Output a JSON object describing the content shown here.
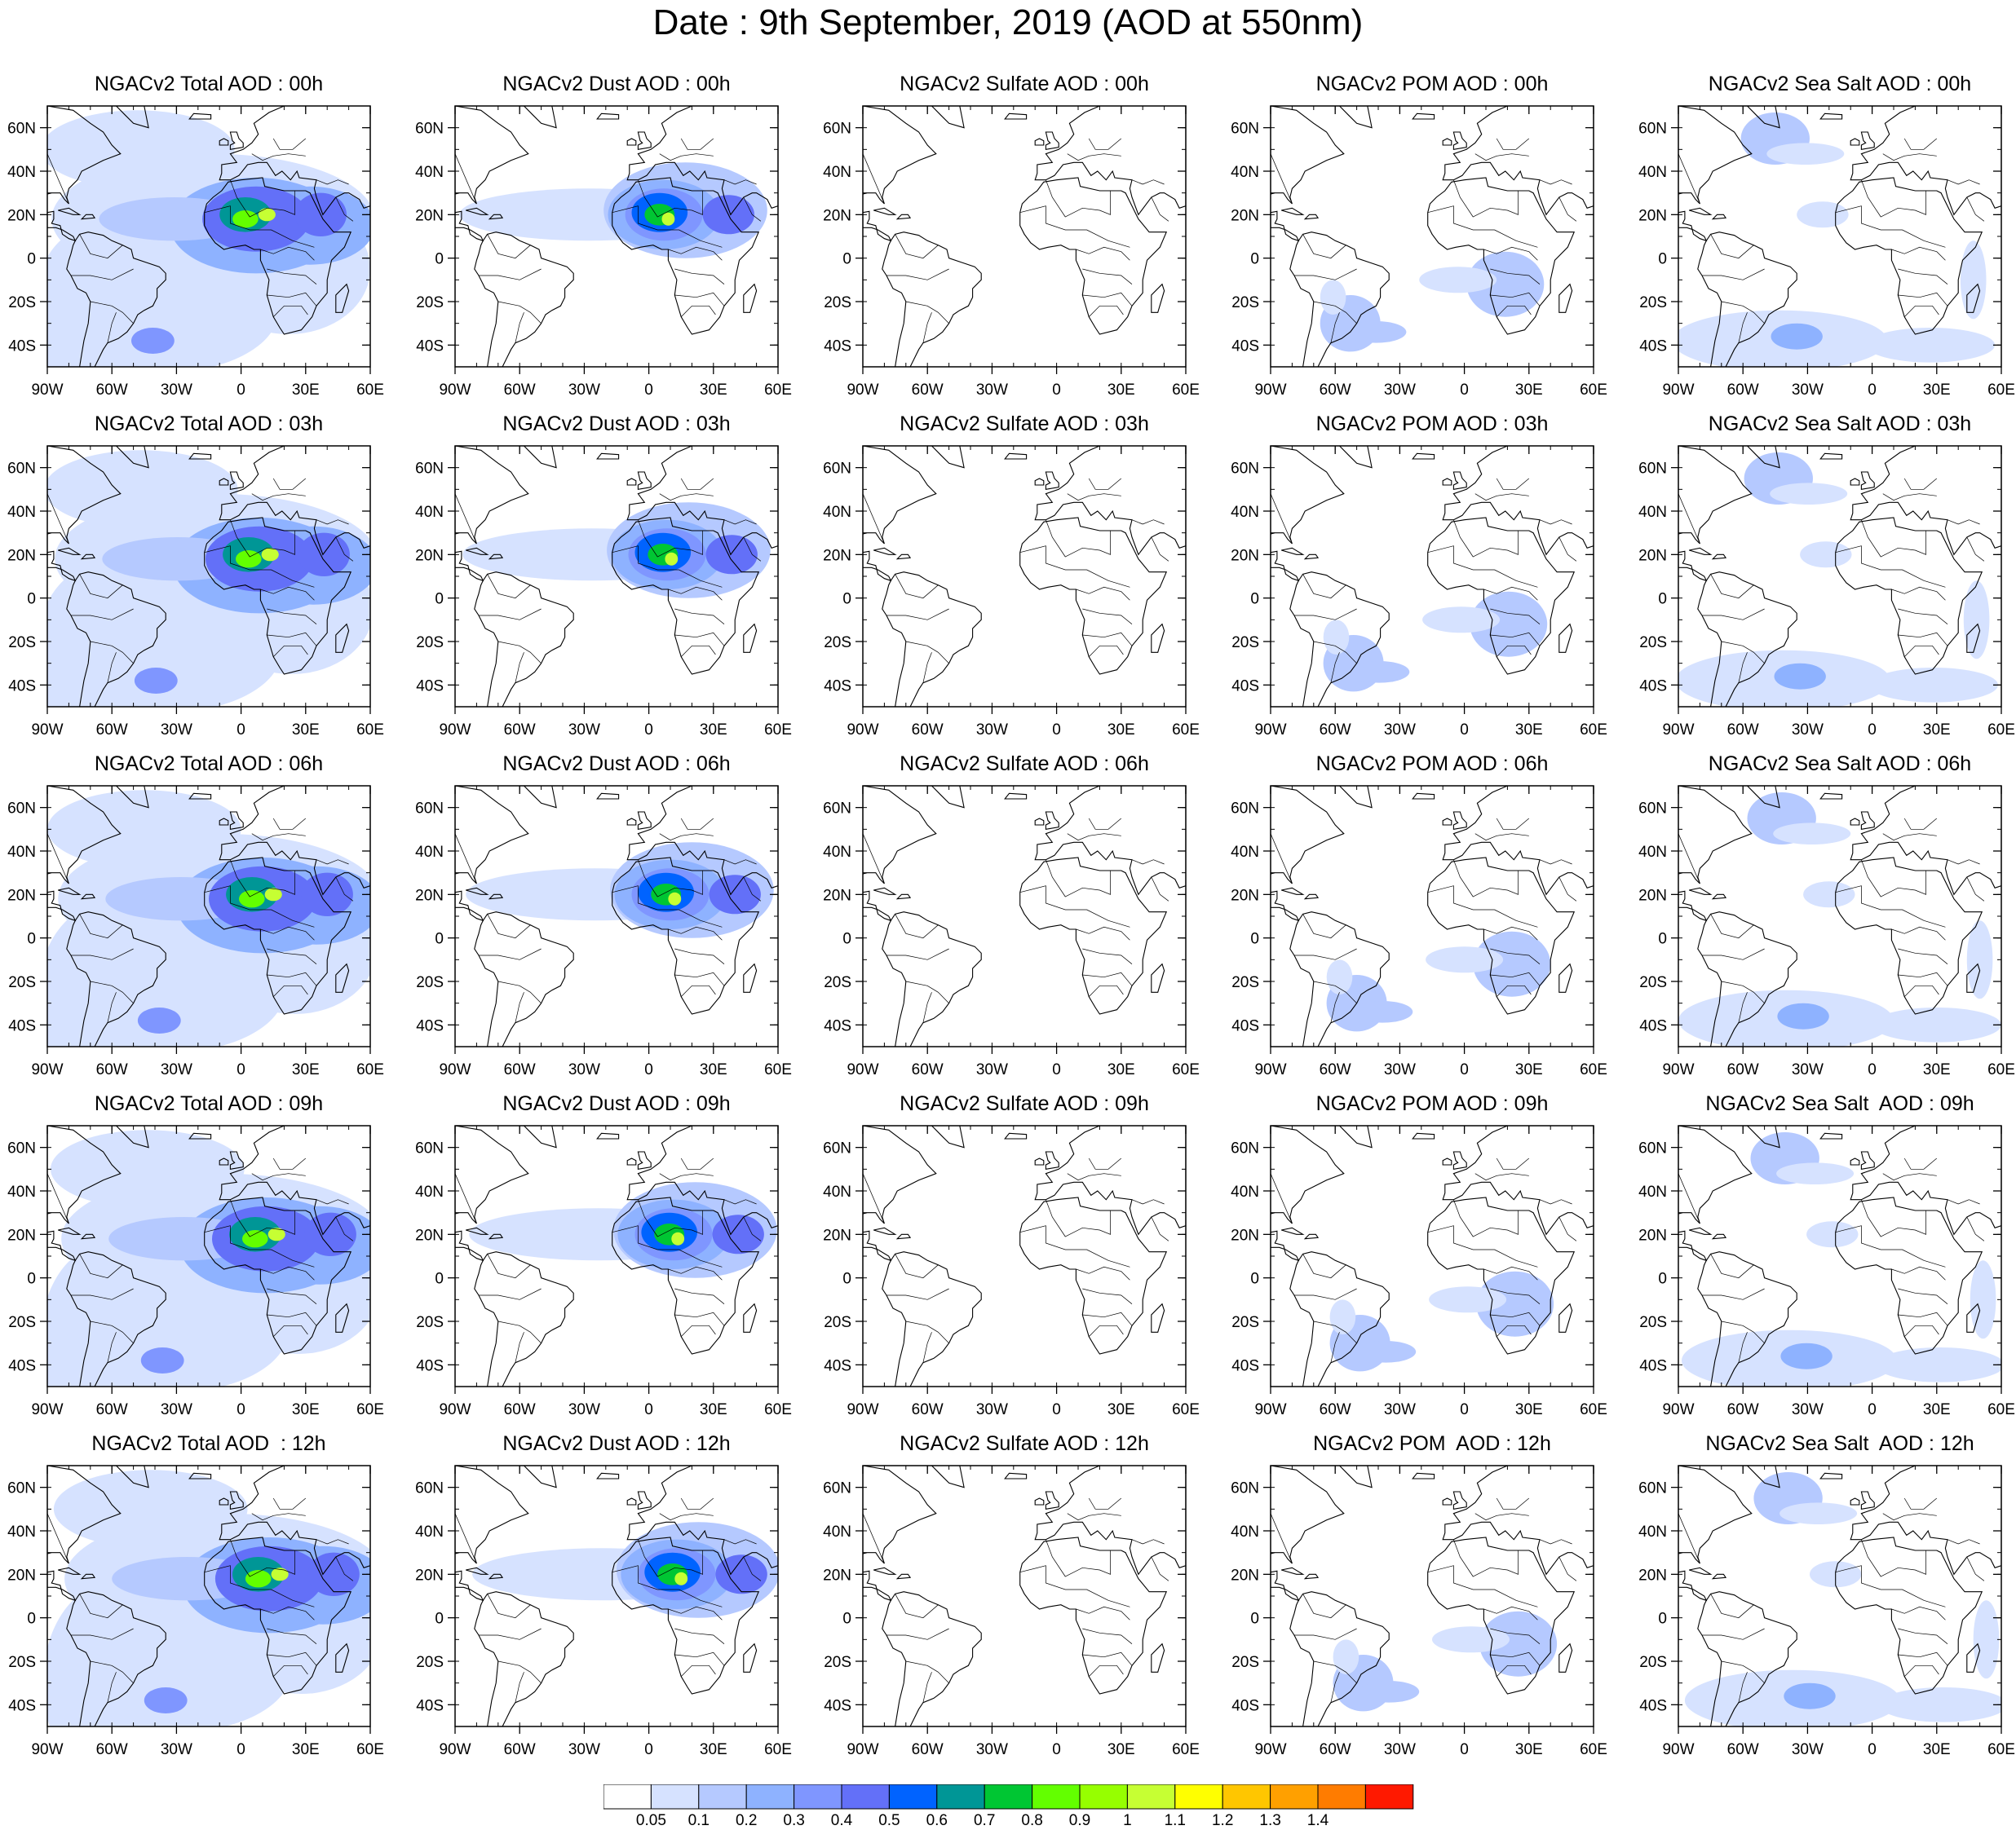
{
  "title": "Date : 9th September, 2019 (AOD at 550nm)",
  "columns": [
    "Total",
    "Dust",
    "Sulfate",
    "POM",
    "Sea Salt"
  ],
  "hours": [
    "00h",
    "03h",
    "06h",
    "09h",
    "12h"
  ],
  "panel_titles": [
    [
      "NGACv2 Total AOD : 00h",
      "NGACv2 Dust AOD : 00h",
      "NGACv2 Sulfate AOD : 00h",
      "NGACv2 POM AOD : 00h",
      "NGACv2 Sea Salt AOD : 00h"
    ],
    [
      "NGACv2 Total AOD : 03h",
      "NGACv2 Dust AOD : 03h",
      "NGACv2 Sulfate AOD : 03h",
      "NGACv2 POM AOD : 03h",
      "NGACv2 Sea Salt AOD : 03h"
    ],
    [
      "NGACv2 Total AOD : 06h",
      "NGACv2 Dust AOD : 06h",
      "NGACv2 Sulfate AOD : 06h",
      "NGACv2 POM AOD : 06h",
      "NGACv2 Sea Salt AOD : 06h"
    ],
    [
      "NGACv2 Total AOD : 09h",
      "NGACv2 Dust AOD : 09h",
      "NGACv2 Sulfate AOD : 09h",
      "NGACv2 POM AOD : 09h",
      "NGACv2 Sea Salt  AOD : 09h"
    ],
    [
      "NGACv2 Total AOD  : 12h",
      "NGACv2 Dust AOD : 12h",
      "NGACv2 Sulfate AOD : 12h",
      "NGACv2 POM  AOD : 12h",
      "NGACv2 Sea Salt  AOD : 12h"
    ]
  ],
  "map": {
    "lon_range": [
      -90,
      60
    ],
    "lat_range": [
      -50,
      70
    ],
    "lon_ticks": [
      -90,
      -60,
      -30,
      0,
      30,
      60
    ],
    "lon_tick_labels": [
      "90W",
      "60W",
      "30W",
      "0",
      "30E",
      "60E"
    ],
    "lat_ticks": [
      60,
      40,
      20,
      0,
      -20,
      -40
    ],
    "lat_tick_labels": [
      "60N",
      "40N",
      "20N",
      "0",
      "20S",
      "40S"
    ]
  },
  "colorbar": {
    "labels": [
      "0.05",
      "0.1",
      "0.2",
      "0.3",
      "0.4",
      "0.5",
      "0.6",
      "0.7",
      "0.8",
      "0.9",
      "1",
      "1.1",
      "1.2",
      "1.3",
      "1.4"
    ],
    "colors": [
      "#ffffff",
      "#d6e2ff",
      "#b5c9ff",
      "#8eb2ff",
      "#7f96ff",
      "#6370f8",
      "#0063ff",
      "#009696",
      "#00c633",
      "#63ff00",
      "#96ff00",
      "#c6ff33",
      "#ffff00",
      "#ffc600",
      "#ffa000",
      "#ff7c00",
      "#ff1900"
    ]
  }
}
